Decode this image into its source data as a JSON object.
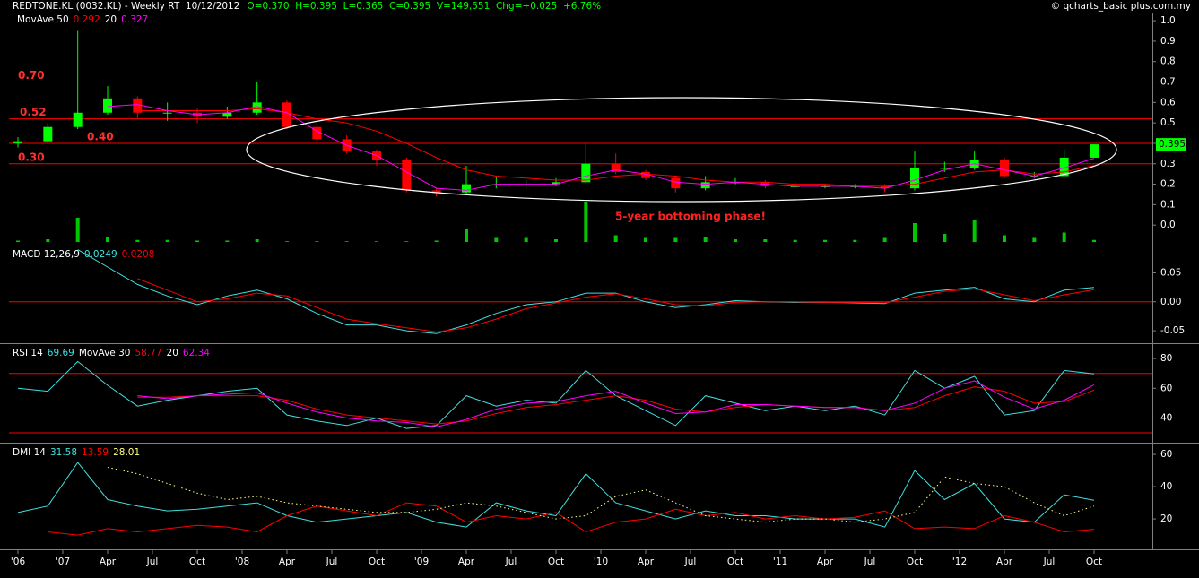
{
  "chart_data": [
    {
      "type": "candlestick",
      "title": "REDTONE.KL (0032.KL) - Weekly RT  10/12/2012",
      "quote": "O=0.370  H=0.395  L=0.365  C=0.395  V=149,551  Chg=+0.025  +6.76%",
      "source": "© qcharts_basic plus.com.my",
      "annotation": "5-year bottoming phase!",
      "x": [
        -3,
        -1,
        1,
        3,
        5,
        7,
        9,
        11,
        13,
        15,
        17,
        19,
        21,
        23,
        25,
        27,
        29,
        31,
        33,
        35,
        37,
        39,
        41,
        43,
        45,
        47,
        49,
        51,
        53,
        55,
        57,
        59,
        61,
        63,
        65,
        67,
        69
      ],
      "open": [
        0.4,
        0.41,
        0.48,
        0.55,
        0.62,
        0.55,
        0.55,
        0.53,
        0.55,
        0.6,
        0.48,
        0.42,
        0.36,
        0.32,
        0.17,
        0.16,
        0.2,
        0.2,
        0.2,
        0.21,
        0.3,
        0.26,
        0.23,
        0.18,
        0.21,
        0.21,
        0.19,
        0.19,
        0.19,
        0.19,
        0.18,
        0.28,
        0.28,
        0.32,
        0.24,
        0.24,
        0.33
      ],
      "high": [
        0.43,
        0.5,
        0.95,
        0.68,
        0.63,
        0.6,
        0.57,
        0.58,
        0.7,
        0.61,
        0.5,
        0.44,
        0.37,
        0.33,
        0.18,
        0.29,
        0.24,
        0.22,
        0.23,
        0.4,
        0.35,
        0.27,
        0.24,
        0.24,
        0.23,
        0.22,
        0.21,
        0.2,
        0.2,
        0.2,
        0.36,
        0.31,
        0.36,
        0.33,
        0.26,
        0.37,
        0.395
      ],
      "low": [
        0.38,
        0.4,
        0.47,
        0.54,
        0.52,
        0.51,
        0.5,
        0.52,
        0.54,
        0.47,
        0.4,
        0.35,
        0.29,
        0.16,
        0.14,
        0.15,
        0.18,
        0.18,
        0.19,
        0.2,
        0.25,
        0.22,
        0.16,
        0.17,
        0.2,
        0.18,
        0.18,
        0.18,
        0.18,
        0.16,
        0.17,
        0.26,
        0.27,
        0.23,
        0.23,
        0.24,
        0.33
      ],
      "close": [
        0.41,
        0.48,
        0.55,
        0.62,
        0.55,
        0.55,
        0.53,
        0.55,
        0.6,
        0.48,
        0.42,
        0.36,
        0.32,
        0.17,
        0.16,
        0.2,
        0.2,
        0.2,
        0.21,
        0.3,
        0.26,
        0.23,
        0.18,
        0.21,
        0.21,
        0.19,
        0.19,
        0.19,
        0.19,
        0.18,
        0.28,
        0.28,
        0.32,
        0.24,
        0.24,
        0.33,
        0.395
      ],
      "up_color": "#00ff00",
      "down_color": "#ff0000",
      "volume": [
        100000,
        200000,
        1800000,
        400000,
        150000,
        150000,
        100000,
        100000,
        200000,
        50000,
        50000,
        50000,
        50000,
        50000,
        100000,
        1000000,
        300000,
        300000,
        200000,
        3000000,
        500000,
        300000,
        300000,
        400000,
        200000,
        200000,
        150000,
        150000,
        150000,
        300000,
        1400000,
        600000,
        1600000,
        500000,
        300000,
        700000,
        149551
      ],
      "volume_color": "#00c800",
      "volume_lim": [
        0,
        4000000
      ],
      "series": [
        {
          "name": "MovAve 50",
          "color": "#ff0000",
          "values": [
            null,
            null,
            null,
            null,
            0.56,
            0.56,
            0.56,
            0.56,
            0.57,
            0.55,
            0.52,
            0.5,
            0.46,
            0.4,
            0.33,
            0.27,
            0.24,
            0.23,
            0.22,
            0.22,
            0.24,
            0.25,
            0.24,
            0.22,
            0.21,
            0.21,
            0.2,
            0.2,
            0.19,
            0.19,
            0.2,
            0.23,
            0.26,
            0.27,
            0.25,
            0.26,
            0.292
          ]
        },
        {
          "name": "20",
          "color": "#ff00ff",
          "values": [
            null,
            null,
            null,
            0.58,
            0.59,
            0.56,
            0.54,
            0.55,
            0.58,
            0.55,
            0.46,
            0.39,
            0.34,
            0.26,
            0.18,
            0.17,
            0.2,
            0.2,
            0.2,
            0.24,
            0.27,
            0.25,
            0.21,
            0.2,
            0.21,
            0.2,
            0.19,
            0.19,
            0.19,
            0.18,
            0.22,
            0.27,
            0.3,
            0.27,
            0.24,
            0.28,
            0.327
          ]
        }
      ],
      "levels": [
        {
          "value": 0.7,
          "label": "0.70"
        },
        {
          "value": 0.52,
          "label": "0.52"
        },
        {
          "value": 0.4,
          "label": "0.40"
        },
        {
          "value": 0.3,
          "label": "0.30"
        }
      ],
      "level_color": "#ff0000",
      "ylim": [
        -0.1,
        1.04
      ],
      "yticks": [
        {
          "value": 0,
          "label": "0.0"
        },
        0.1,
        0.2,
        0.3,
        0.4,
        0.5,
        0.6,
        0.7,
        0.8,
        0.9,
        {
          "value": 1,
          "label": "1.0"
        }
      ],
      "xlim": [
        -3.6,
        72.9
      ],
      "xticks": [
        {
          "value": -3,
          "label": "'06"
        },
        {
          "value": 0,
          "label": "'07"
        },
        {
          "value": 3,
          "label": "Apr"
        },
        {
          "value": 6,
          "label": "Jul"
        },
        {
          "value": 9,
          "label": "Oct"
        },
        {
          "value": 12,
          "label": "'08"
        },
        {
          "value": 15,
          "label": "Apr"
        },
        {
          "value": 18,
          "label": "Jul"
        },
        {
          "value": 21,
          "label": "Oct"
        },
        {
          "value": 24,
          "label": "'09"
        },
        {
          "value": 27,
          "label": "Apr"
        },
        {
          "value": 30,
          "label": "Jul"
        },
        {
          "value": 33,
          "label": "Oct"
        },
        {
          "value": 36,
          "label": "'10"
        },
        {
          "value": 39,
          "label": "Apr"
        },
        {
          "value": 42,
          "label": "Jul"
        },
        {
          "value": 45,
          "label": "Oct"
        },
        {
          "value": 48,
          "label": "'11"
        },
        {
          "value": 51,
          "label": "Apr"
        },
        {
          "value": 54,
          "label": "Jul"
        },
        {
          "value": 57,
          "label": "Oct"
        },
        {
          "value": 60,
          "label": "'12"
        },
        {
          "value": 63,
          "label": "Apr"
        },
        {
          "value": 66,
          "label": "Jul"
        },
        {
          "value": 69,
          "label": "Oct"
        }
      ]
    },
    {
      "type": "line",
      "title": "MACD 12,26,9",
      "x": [
        -3,
        -1,
        1,
        3,
        5,
        7,
        9,
        11,
        13,
        15,
        17,
        19,
        21,
        23,
        25,
        27,
        29,
        31,
        33,
        35,
        37,
        39,
        41,
        43,
        45,
        47,
        49,
        51,
        53,
        55,
        57,
        59,
        61,
        63,
        65,
        67,
        69
      ],
      "series": [
        {
          "color": "#40e0e0",
          "values": [
            null,
            null,
            0.09,
            0.06,
            0.03,
            0.01,
            -0.005,
            0.01,
            0.02,
            0.005,
            -0.02,
            -0.04,
            -0.04,
            -0.05,
            -0.055,
            -0.04,
            -0.02,
            -0.005,
            0,
            0.015,
            0.015,
            0,
            -0.01,
            -0.005,
            0.002,
            0,
            -0.001,
            -0.001,
            -0.002,
            -0.003,
            0.015,
            0.02,
            0.025,
            0.005,
            0,
            0.02,
            0.0249
          ]
        },
        {
          "color": "#ff0000",
          "values": [
            null,
            null,
            null,
            null,
            0.04,
            0.02,
            0,
            0.005,
            0.015,
            0.01,
            -0.01,
            -0.03,
            -0.038,
            -0.045,
            -0.052,
            -0.045,
            -0.03,
            -0.012,
            -0.002,
            0.008,
            0.014,
            0.005,
            -0.005,
            -0.007,
            -0.001,
            0,
            0,
            -0.001,
            -0.001,
            -0.002,
            0.008,
            0.018,
            0.022,
            0.012,
            0.002,
            0.012,
            0.0208
          ]
        }
      ],
      "hlines": [
        0
      ],
      "hline_color": "#ff0000",
      "ylim": [
        -0.07,
        0.094
      ],
      "yticks": [
        0.05,
        {
          "value": 0,
          "label": "0.00"
        },
        -0.05
      ],
      "xlim": [
        -3.6,
        72.9
      ]
    },
    {
      "type": "line",
      "title": "RSI 14",
      "x": [
        -3,
        -1,
        1,
        3,
        5,
        7,
        9,
        11,
        13,
        15,
        17,
        19,
        21,
        23,
        25,
        27,
        29,
        31,
        33,
        35,
        37,
        39,
        41,
        43,
        45,
        47,
        49,
        51,
        53,
        55,
        57,
        59,
        61,
        63,
        65,
        67,
        69
      ],
      "series": [
        {
          "color": "#40e0e0",
          "values": [
            60,
            58,
            78,
            62,
            48,
            52,
            55,
            58,
            60,
            42,
            38,
            35,
            40,
            33,
            35,
            55,
            48,
            52,
            50,
            72,
            55,
            45,
            35,
            55,
            50,
            45,
            48,
            45,
            48,
            42,
            72,
            60,
            68,
            42,
            45,
            72,
            69.69
          ]
        },
        {
          "name": "MovAve 30",
          "color": "#ff0000",
          "values": [
            null,
            null,
            null,
            null,
            54,
            54,
            55,
            55,
            55,
            52,
            46,
            42,
            40,
            38,
            36,
            38,
            43,
            47,
            49,
            52,
            55,
            52,
            46,
            44,
            47,
            49,
            48,
            47,
            47,
            45,
            47,
            55,
            61,
            58,
            50,
            51,
            58.77
          ]
        },
        {
          "name": "20",
          "color": "#ff00ff",
          "values": [
            null,
            null,
            null,
            null,
            55,
            53,
            55,
            56,
            57,
            50,
            44,
            40,
            38,
            37,
            34,
            39,
            46,
            50,
            51,
            55,
            58,
            50,
            43,
            44,
            49,
            49,
            48,
            47,
            47,
            45,
            50,
            60,
            65,
            54,
            46,
            52,
            62.34
          ]
        }
      ],
      "hlines": [
        70,
        30
      ],
      "hline_color": "#ff0000",
      "ylim": [
        24,
        88.5
      ],
      "yticks": [
        80,
        60,
        40
      ],
      "xlim": [
        -3.6,
        72.9
      ]
    },
    {
      "type": "line",
      "title": "DMI 14",
      "x": [
        -3,
        -1,
        1,
        3,
        5,
        7,
        9,
        11,
        13,
        15,
        17,
        19,
        21,
        23,
        25,
        27,
        29,
        31,
        33,
        35,
        37,
        39,
        41,
        43,
        45,
        47,
        49,
        51,
        53,
        55,
        57,
        59,
        61,
        63,
        65,
        67,
        69
      ],
      "series": [
        {
          "color": "#40e0e0",
          "values": [
            24,
            28,
            55,
            32,
            28,
            25,
            26,
            28,
            30,
            22,
            18,
            20,
            22,
            24,
            18,
            15,
            30,
            25,
            22,
            48,
            30,
            25,
            20,
            25,
            22,
            22,
            20,
            20,
            20,
            15,
            50,
            32,
            42,
            20,
            18,
            35,
            31.58
          ]
        },
        {
          "color": "#ff0000",
          "values": [
            null,
            12,
            10,
            14,
            12,
            14,
            16,
            15,
            12,
            22,
            28,
            25,
            22,
            30,
            28,
            18,
            22,
            20,
            24,
            12,
            18,
            20,
            26,
            22,
            24,
            20,
            22,
            20,
            21,
            25,
            14,
            15,
            14,
            22,
            18,
            12,
            13.59
          ]
        },
        {
          "color": "#ffff80",
          "dash": true,
          "values": [
            null,
            null,
            null,
            52,
            48,
            42,
            36,
            32,
            34,
            30,
            28,
            26,
            24,
            24,
            26,
            30,
            28,
            24,
            20,
            22,
            34,
            38,
            30,
            22,
            20,
            18,
            20,
            20,
            18,
            20,
            24,
            46,
            42,
            40,
            30,
            22,
            28.01
          ]
        }
      ],
      "ylim": [
        1.7,
        65.6
      ],
      "yticks": [
        60,
        40,
        20
      ],
      "xlim": [
        -3.6,
        72.9
      ]
    }
  ]
}
